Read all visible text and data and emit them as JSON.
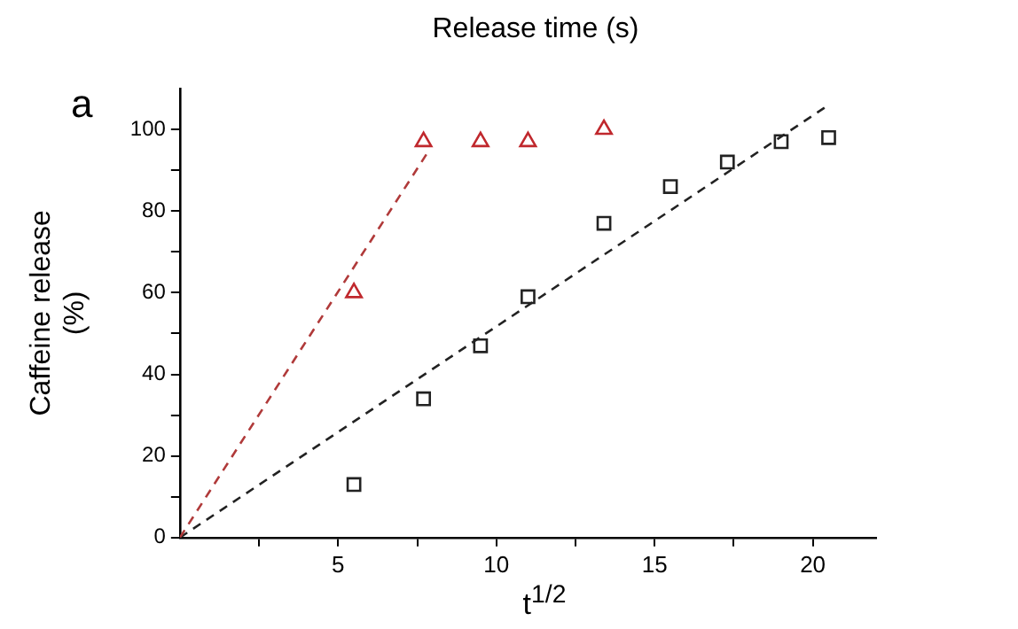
{
  "chart_data": {
    "type": "scatter",
    "title": "Release time (s)",
    "xlabel": "t$^{1/2}$",
    "ylabel": "Caffeine release\n(%)",
    "annotations": [
      "a"
    ],
    "xlim": [
      0,
      22
    ],
    "xticks": [
      {
        "value": 2.5,
        "label": null
      },
      5,
      {
        "value": 7.5,
        "label": null
      },
      10,
      {
        "value": 12.5,
        "label": null
      },
      15,
      {
        "value": 17.5,
        "label": null
      },
      20
    ],
    "ylim": [
      0,
      110
    ],
    "yticks": [
      0,
      {
        "value": 10,
        "label": null
      },
      20,
      {
        "value": 30,
        "label": null
      },
      40,
      {
        "value": 50,
        "label": null
      },
      60,
      {
        "value": 70,
        "label": null
      },
      80,
      {
        "value": 90,
        "label": null
      },
      100
    ],
    "grid": false,
    "legend": false,
    "series": [
      {
        "type": "scatter",
        "color": "#c0282d",
        "marker": "triangle",
        "x": [
          5.5,
          7.7,
          9.5,
          11,
          13.4
        ],
        "values": [
          60,
          97,
          97,
          97,
          100
        ]
      },
      {
        "type": "scatter",
        "color": "#222222",
        "marker": "square",
        "x": [
          5.5,
          7.7,
          9.5,
          11,
          13.4,
          15.5,
          17.3,
          19,
          20.5
        ],
        "values": [
          13,
          34,
          47,
          59,
          77,
          86,
          92,
          97,
          98
        ]
      },
      {
        "type": "line",
        "color": "#b03a3a",
        "line_style": "dashed",
        "marker": "none",
        "x": [
          0,
          7.8
        ],
        "values": [
          0,
          94
        ]
      },
      {
        "type": "line",
        "color": "#222222",
        "line_style": "dashed",
        "marker": "none",
        "x": [
          0,
          20.5
        ],
        "values": [
          0,
          106
        ]
      }
    ]
  }
}
